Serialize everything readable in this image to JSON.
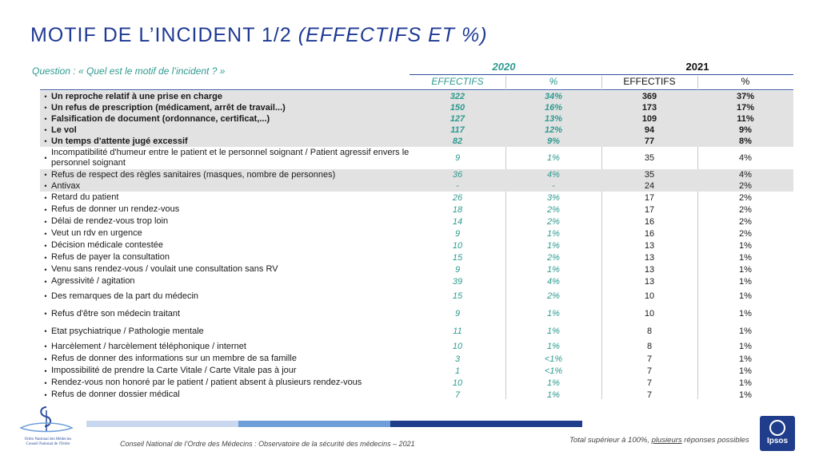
{
  "title": {
    "main": "MOTIF DE L’INCIDENT 1/2",
    "italic": "(EFFECTIFS ET %)"
  },
  "question": "Question : « Quel est le motif de l’incident ? »",
  "years": {
    "y2020": "2020",
    "y2021": "2021"
  },
  "col_headers": {
    "effectifs_2020": "EFFECTIFS",
    "pct_2020": "%",
    "effectifs_2021": "EFFECTIFS",
    "pct_2021": "%"
  },
  "rows": [
    {
      "label": "Un reproche relatif à une prise en charge",
      "e2020": "322",
      "p2020": "34%",
      "e2021": "369",
      "p2021": "37%"
    },
    {
      "label": "Un refus de prescription (médicament, arrêt de travail...)",
      "e2020": "150",
      "p2020": "16%",
      "e2021": "173",
      "p2021": "17%"
    },
    {
      "label": "Falsification de document (ordonnance, certificat,...)",
      "e2020": "127",
      "p2020": "13%",
      "e2021": "109",
      "p2021": "11%"
    },
    {
      "label": "Le vol",
      "e2020": "117",
      "p2020": "12%",
      "e2021": "94",
      "p2021": "9%"
    },
    {
      "label": "Un temps d'attente jugé excessif",
      "e2020": "82",
      "p2020": "9%",
      "e2021": "77",
      "p2021": "8%"
    },
    {
      "label": "Incompatibilité d'humeur entre le patient et le personnel soignant / Patient agressif envers le personnel soignant",
      "e2020": "9",
      "p2020": "1%",
      "e2021": "35",
      "p2021": "4%"
    },
    {
      "label": "Refus de respect des règles sanitaires (masques, nombre de personnes)",
      "e2020": "36",
      "p2020": "4%",
      "e2021": "35",
      "p2021": "4%"
    },
    {
      "label": "Antivax",
      "e2020": "-",
      "p2020": "-",
      "e2021": "24",
      "p2021": "2%"
    },
    {
      "label": "Retard du patient",
      "e2020": "26",
      "p2020": "3%",
      "e2021": "17",
      "p2021": "2%"
    },
    {
      "label": "Refus de donner un rendez-vous",
      "e2020": "18",
      "p2020": "2%",
      "e2021": "17",
      "p2021": "2%"
    },
    {
      "label": "Délai de rendez-vous trop loin",
      "e2020": "14",
      "p2020": "2%",
      "e2021": "16",
      "p2021": "2%"
    },
    {
      "label": "Veut un rdv en urgence",
      "e2020": "9",
      "p2020": "1%",
      "e2021": "16",
      "p2021": "2%"
    },
    {
      "label": "Décision médicale contestée",
      "e2020": "10",
      "p2020": "1%",
      "e2021": "13",
      "p2021": "1%"
    },
    {
      "label": "Refus de payer la consultation",
      "e2020": "15",
      "p2020": "2%",
      "e2021": "13",
      "p2021": "1%"
    },
    {
      "label": "Venu sans rendez-vous / voulait une consultation sans RV",
      "e2020": "9",
      "p2020": "1%",
      "e2021": "13",
      "p2021": "1%"
    },
    {
      "label": "Agressivité / agitation",
      "e2020": "39",
      "p2020": "4%",
      "e2021": "13",
      "p2021": "1%"
    },
    {
      "label": "Des remarques de la part du médecin",
      "e2020": "15",
      "p2020": "2%",
      "e2021": "10",
      "p2021": "1%"
    },
    {
      "label": "Refus d'être son médecin traitant",
      "e2020": "9",
      "p2020": "1%",
      "e2021": "10",
      "p2021": "1%"
    },
    {
      "label": "Etat psychiatrique / Pathologie mentale",
      "e2020": "11",
      "p2020": "1%",
      "e2021": "8",
      "p2021": "1%"
    },
    {
      "label": "Harcèlement / harcèlement téléphonique / internet",
      "e2020": "10",
      "p2020": "1%",
      "e2021": "8",
      "p2021": "1%"
    },
    {
      "label": "Refus de donner des informations sur un membre de sa famille",
      "e2020": "3",
      "p2020": "<1%",
      "e2021": "7",
      "p2021": "1%"
    },
    {
      "label": "Impossibilité de prendre la Carte Vitale / Carte Vitale pas à jour",
      "e2020": "1",
      "p2020": "<1%",
      "e2021": "7",
      "p2021": "1%"
    },
    {
      "label": "Rendez-vous non honoré par le patient / patient absent à plusieurs rendez-vous",
      "e2020": "10",
      "p2020": "1%",
      "e2021": "7",
      "p2021": "1%"
    },
    {
      "label": "Refus de donner dossier médical",
      "e2020": "7",
      "p2020": "1%",
      "e2021": "7",
      "p2021": "1%"
    }
  ],
  "footer": "Conseil National de l’Ordre des Médecins : Observatoire de la sécurité des médecins – 2021",
  "note": {
    "before": "Total supérieur à 100%, ",
    "underlined": "plusieurs",
    "after": " réponses possibles"
  },
  "logos": {
    "cnom_line1": "Ordre National des Médecins",
    "cnom_line2": "Conseil National de l'Ordre",
    "ipsos": "Ipsos"
  },
  "colors": {
    "title": "#1f3a93",
    "teal": "#2e9a90",
    "shade": "#e2e2e2",
    "bar1": "#1f3d8a",
    "bar2": "#6f9fd8",
    "bar3": "#c9d8ee"
  }
}
